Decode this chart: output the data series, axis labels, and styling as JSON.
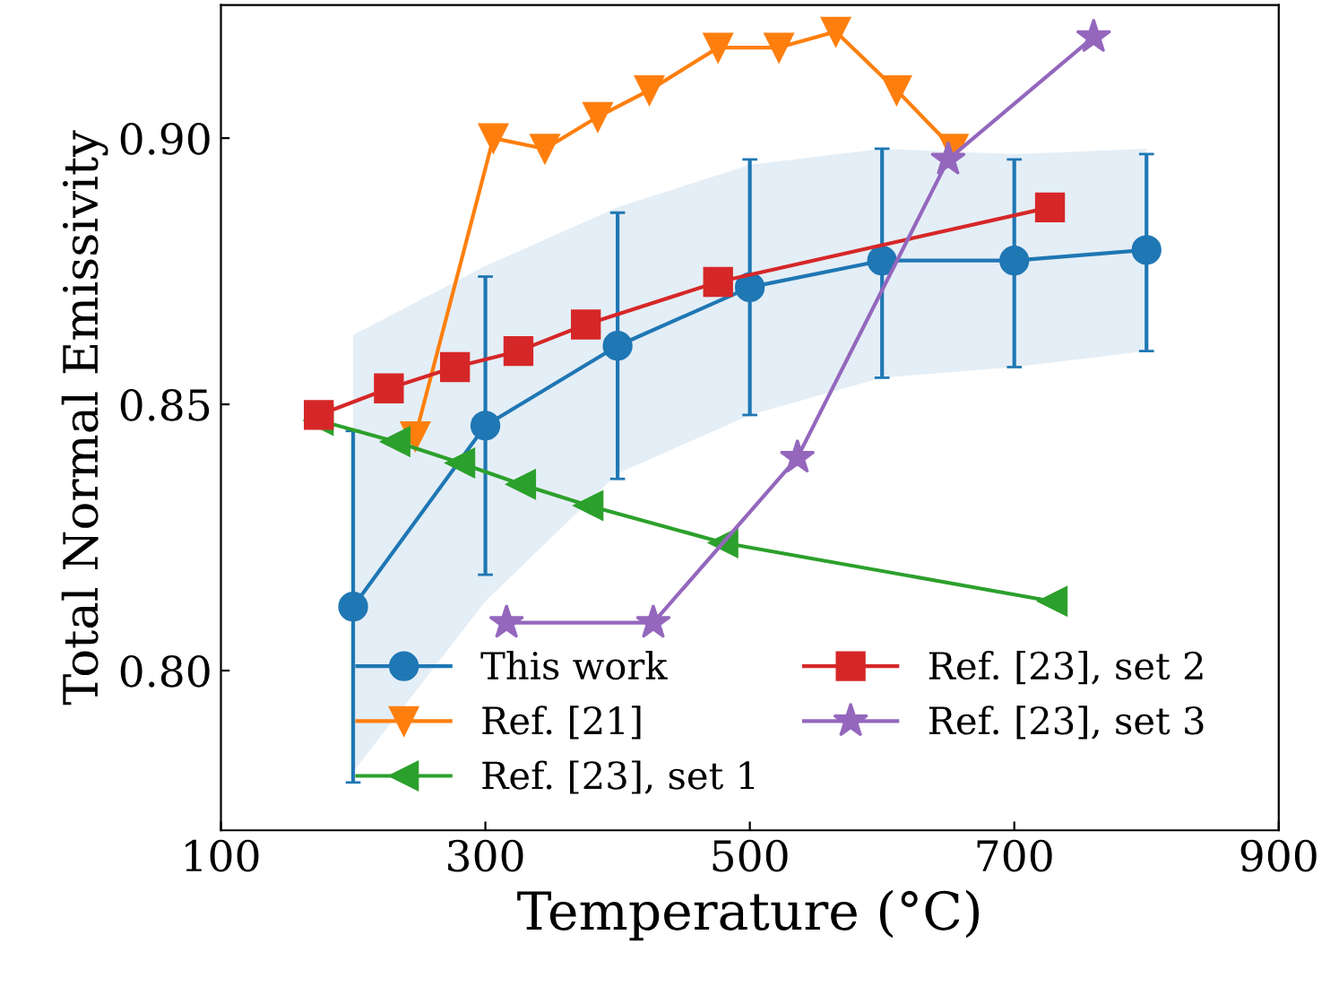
{
  "chart_data": {
    "type": "line",
    "xlabel": "Temperature (°C)",
    "ylabel": "Total Normal Emissivity",
    "xlim": [
      100,
      900
    ],
    "xticks": [
      100,
      300,
      500,
      700,
      900
    ],
    "ylim": [
      0.77,
      0.925
    ],
    "yticks": [
      {
        "value": 0.8,
        "label": "0.80"
      },
      {
        "value": 0.85,
        "label": "0.85"
      },
      {
        "value": 0.9,
        "label": "0.90"
      }
    ],
    "legend": "bottom",
    "grid": false,
    "line_style": "solid",
    "series": [
      {
        "name": "This work",
        "color": "#1f77b4",
        "marker": "circle",
        "x": [
          200,
          300,
          400,
          500,
          600,
          700,
          800
        ],
        "values": [
          0.812,
          0.846,
          0.861,
          0.872,
          0.877,
          0.877,
          0.879
        ],
        "errors": [
          [
            0.779,
            0.845
          ],
          [
            0.818,
            0.874
          ],
          [
            0.836,
            0.886
          ],
          [
            0.848,
            0.896
          ],
          [
            0.855,
            0.898
          ],
          [
            0.857,
            0.896
          ],
          [
            0.86,
            0.897
          ]
        ],
        "lower": [
          0.781,
          0.813,
          0.837,
          0.848,
          0.855,
          0.857,
          0.86
        ],
        "upper": [
          0.863,
          0.876,
          0.887,
          0.895,
          0.898,
          0.897,
          0.898
        ]
      },
      {
        "name": "Ref. [21]",
        "color": "#ff7f0e",
        "marker": "triangle_down",
        "x": [
          247,
          306,
          345,
          385,
          424,
          476,
          522,
          565,
          611,
          654
        ],
        "values": [
          0.844,
          0.9,
          0.898,
          0.904,
          0.909,
          0.917,
          0.917,
          0.92,
          0.909,
          0.898
        ]
      },
      {
        "name": "Ref. [23], set 1",
        "color": "#2ca02c",
        "marker": "triangle_left",
        "x": [
          174,
          232,
          281,
          327,
          378,
          480,
          729
        ],
        "values": [
          0.847,
          0.843,
          0.839,
          0.835,
          0.831,
          0.824,
          0.813
        ]
      },
      {
        "name": "Ref. [23], set 2",
        "color": "#d62728",
        "marker": "square",
        "x": [
          174,
          227,
          277,
          325,
          376,
          476,
          727
        ],
        "values": [
          0.848,
          0.853,
          0.857,
          0.86,
          0.865,
          0.873,
          0.887
        ]
      },
      {
        "name": "Ref. [23], set 3",
        "color": "#9467bd",
        "marker": "star",
        "x": [
          316,
          427,
          536,
          650,
          760
        ],
        "values": [
          0.809,
          0.809,
          0.84,
          0.896,
          0.919
        ]
      }
    ]
  }
}
